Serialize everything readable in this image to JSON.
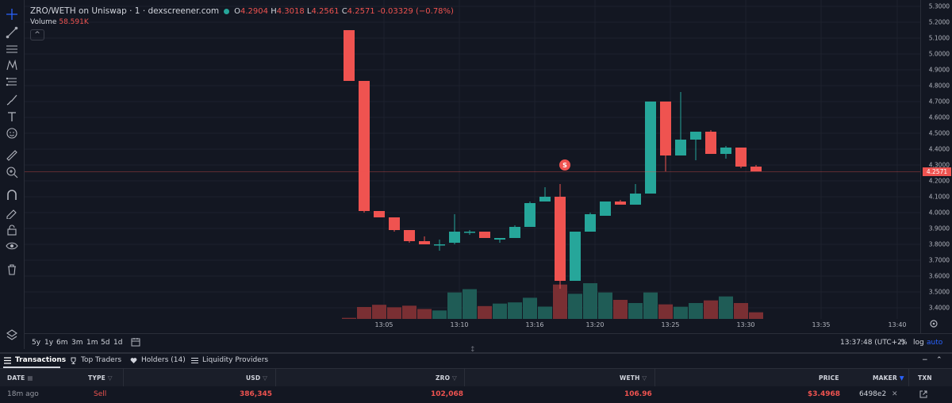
{
  "header": {
    "symbol": "ZRO/WETH on Uniswap · 1 · dexscreener.com",
    "ohlc": {
      "o_label": "O",
      "o_value": "4.2904",
      "h_label": "H",
      "h_value": "4.3018",
      "l_label": "L",
      "l_value": "4.2561",
      "c_label": "C",
      "c_value": "4.2571",
      "change": "-0.03329 (−0.78%)"
    },
    "volume_label": "Volume",
    "volume_value": "58.591K",
    "collapse_glyph": "^"
  },
  "toolbar_icons": [
    "crosshair-icon",
    "trend-line-icon",
    "fib-lines-icon",
    "pattern-icon",
    "measure-lines-icon",
    "brush-icon",
    "text-icon",
    "emoji-icon",
    "ruler-icon",
    "zoom-in-icon",
    "magnet-icon",
    "lock-draw-icon",
    "lock-icon",
    "eye-icon",
    "trash-icon",
    "layers-icon"
  ],
  "price_axis": {
    "ticks": [
      "5.3000",
      "5.2000",
      "5.1000",
      "5.0000",
      "4.9000",
      "4.8000",
      "4.7000",
      "4.6000",
      "4.5000",
      "4.4000",
      "4.3000",
      "4.2000",
      "4.1000",
      "4.0000",
      "3.9000",
      "3.8000",
      "3.7000",
      "3.6000",
      "3.5000",
      "3.4000"
    ],
    "current_price": "4.2571"
  },
  "time_axis": {
    "ticks": [
      "13:05",
      "13:10",
      "13:16",
      "13:20",
      "13:25",
      "13:30",
      "13:35",
      "13:40"
    ]
  },
  "marker": {
    "label": "S"
  },
  "range_bar": {
    "ranges": [
      "5y",
      "1y",
      "6m",
      "3m",
      "1m",
      "5d",
      "1d"
    ],
    "clock": "13:37:48 (UTC+2)",
    "percent_label": "%",
    "log_label": "log",
    "auto_label": "auto"
  },
  "tabs": {
    "items": [
      "Transactions",
      "Top Traders",
      "Holders (14)",
      "Liquidity Providers"
    ],
    "collapse_glyphs": [
      "−",
      "⌃"
    ]
  },
  "table": {
    "headers": [
      "DATE",
      "TYPE",
      "USD",
      "ZRO",
      "WETH",
      "PRICE",
      "MAKER",
      "TXN"
    ],
    "rows": [
      {
        "date": "18m ago",
        "type": "Sell",
        "usd": "386,345",
        "zro": "102,068",
        "weth": "106.96",
        "price": "$3.4968",
        "maker": "6498e2"
      }
    ]
  },
  "colors": {
    "up": "#26a69a",
    "down": "#ef5350",
    "background": "#131722",
    "grid": "#1e222d"
  },
  "chart_data": {
    "type": "candlestick",
    "xlabel": "",
    "ylabel": "",
    "ylim": [
      3.33,
      5.34
    ],
    "candles": [
      {
        "t": "13:02",
        "o": 5.15,
        "h": 5.15,
        "l": 4.83,
        "c": 4.83
      },
      {
        "t": "13:03",
        "o": 4.83,
        "h": 4.83,
        "l": 4.0,
        "c": 4.01
      },
      {
        "t": "13:04",
        "o": 4.01,
        "h": 4.01,
        "l": 3.97,
        "c": 3.97
      },
      {
        "t": "13:05",
        "o": 3.97,
        "h": 3.97,
        "l": 3.88,
        "c": 3.89
      },
      {
        "t": "13:06",
        "o": 3.89,
        "h": 3.89,
        "l": 3.81,
        "c": 3.82
      },
      {
        "t": "13:07",
        "o": 3.82,
        "h": 3.85,
        "l": 3.8,
        "c": 3.8
      },
      {
        "t": "13:08",
        "o": 3.8,
        "h": 3.83,
        "l": 3.76,
        "c": 3.8
      },
      {
        "t": "13:09",
        "o": 3.81,
        "h": 3.99,
        "l": 3.8,
        "c": 3.88
      },
      {
        "t": "13:10",
        "o": 3.88,
        "h": 3.89,
        "l": 3.86,
        "c": 3.88
      },
      {
        "t": "13:11",
        "o": 3.88,
        "h": 3.88,
        "l": 3.84,
        "c": 3.84
      },
      {
        "t": "13:12",
        "o": 3.83,
        "h": 3.84,
        "l": 3.81,
        "c": 3.84
      },
      {
        "t": "13:13",
        "o": 3.84,
        "h": 3.92,
        "l": 3.84,
        "c": 3.91
      },
      {
        "t": "13:14",
        "o": 3.91,
        "h": 4.07,
        "l": 3.91,
        "c": 4.06
      },
      {
        "t": "13:15",
        "o": 4.07,
        "h": 4.16,
        "l": 4.07,
        "c": 4.1
      },
      {
        "t": "13:16",
        "o": 4.1,
        "h": 4.18,
        "l": 3.52,
        "c": 3.57
      },
      {
        "t": "13:17",
        "o": 3.57,
        "h": 3.88,
        "l": 3.57,
        "c": 3.88
      },
      {
        "t": "13:18",
        "o": 3.88,
        "h": 4.0,
        "l": 3.88,
        "c": 3.99
      },
      {
        "t": "13:19",
        "o": 3.98,
        "h": 4.07,
        "l": 3.98,
        "c": 4.07
      },
      {
        "t": "13:20",
        "o": 4.07,
        "h": 4.08,
        "l": 4.05,
        "c": 4.05
      },
      {
        "t": "13:21",
        "o": 4.05,
        "h": 4.18,
        "l": 4.05,
        "c": 4.12
      },
      {
        "t": "13:22",
        "o": 4.12,
        "h": 4.7,
        "l": 4.12,
        "c": 4.7
      },
      {
        "t": "13:23",
        "o": 4.7,
        "h": 4.7,
        "l": 4.26,
        "c": 4.36
      },
      {
        "t": "13:24",
        "o": 4.36,
        "h": 4.76,
        "l": 4.36,
        "c": 4.46
      },
      {
        "t": "13:25",
        "o": 4.46,
        "h": 4.51,
        "l": 4.33,
        "c": 4.51
      },
      {
        "t": "13:26",
        "o": 4.51,
        "h": 4.52,
        "l": 4.37,
        "c": 4.37
      },
      {
        "t": "13:27",
        "o": 4.37,
        "h": 4.42,
        "l": 4.34,
        "c": 4.41
      },
      {
        "t": "13:28",
        "o": 4.41,
        "h": 4.41,
        "l": 4.28,
        "c": 4.29
      },
      {
        "t": "13:29",
        "o": 4.29,
        "h": 4.3,
        "l": 4.26,
        "c": 4.26
      }
    ],
    "volume": [
      0.08,
      0.9,
      1.07,
      0.88,
      1.0,
      0.75,
      0.64,
      2.0,
      2.25,
      0.97,
      1.16,
      1.25,
      1.6,
      0.93,
      2.6,
      1.9,
      2.7,
      2.0,
      1.44,
      1.2,
      2.0,
      1.1,
      0.92,
      1.2,
      1.4,
      1.7,
      1.2,
      0.5
    ]
  }
}
